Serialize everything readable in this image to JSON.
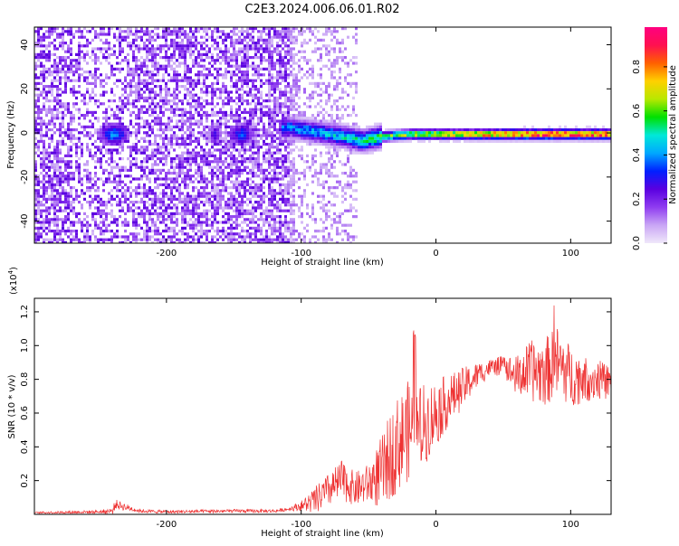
{
  "title": "C2E3.2024.006.06.01.R02",
  "colors": {
    "snr_line": "#ee3333",
    "axis": "#000000",
    "colormap": [
      "#f0e8fa",
      "#c9a6f5",
      "#8f3cf0",
      "#5a00e0",
      "#0020ff",
      "#00a8ff",
      "#00e8d8",
      "#00e000",
      "#b8e800",
      "#ffd000",
      "#ff6000",
      "#ff1050",
      "#ff0080"
    ]
  },
  "chart_data": [
    {
      "type": "heatmap",
      "xlabel": "Height of straight line (km)",
      "ylabel": "Frequency (Hz)",
      "xlim": [
        -298,
        130
      ],
      "ylim": [
        -50,
        48
      ],
      "xticks": [
        -200,
        -100,
        0,
        100
      ],
      "yticks": [
        -40,
        -20,
        0,
        20,
        40
      ],
      "grid": false,
      "colorbar": {
        "label": "Normalized spectral amplitude",
        "range": [
          0.0,
          0.98
        ],
        "ticks": [
          "0.0",
          "0.2",
          "0.4",
          "0.6",
          "0.8"
        ],
        "tick_values": [
          0.0,
          0.2,
          0.4,
          0.6,
          0.8
        ]
      },
      "ridge": {
        "description_values": "strong narrow signal centered near 0 Hz",
        "x": [
          -110,
          -90,
          -70,
          -55,
          -40,
          -20,
          0,
          20,
          40,
          60,
          80,
          100,
          130
        ],
        "center_hz": [
          3,
          1,
          -1,
          -3,
          -1,
          0,
          0,
          0,
          0,
          0,
          0,
          0,
          0
        ],
        "amplitude": [
          0.4,
          0.45,
          0.5,
          0.55,
          0.62,
          0.7,
          0.75,
          0.78,
          0.85,
          0.92,
          0.95,
          0.95,
          0.9
        ]
      }
    },
    {
      "type": "line",
      "xlabel": "Height of straight line (km)",
      "ylabel": "SNR (10 * v/v)",
      "multiplier_label": "(x10",
      "multiplier_exp": "4",
      "xlim": [
        -298,
        130
      ],
      "ylim": [
        0,
        1.28
      ],
      "xticks": [
        -200,
        -100,
        0,
        100
      ],
      "yticks": [
        0.2,
        0.4,
        0.6,
        0.8,
        1.0,
        1.2
      ],
      "ytick_labels": [
        "0.2",
        "0.4",
        "0.6",
        "0.8",
        "1.0",
        "1.2"
      ],
      "grid": false,
      "series": [
        {
          "x": [
            -298,
            -250,
            -240,
            -238,
            -220,
            -200,
            -150,
            -120,
            -110,
            -100,
            -90,
            -80,
            -70,
            -60,
            -50,
            -40,
            -30,
            -20,
            -10,
            0,
            10,
            20,
            30,
            40,
            50,
            60,
            70,
            80,
            90,
            100,
            110,
            120,
            130
          ],
          "y": [
            0.01,
            0.015,
            0.02,
            0.06,
            0.02,
            0.015,
            0.02,
            0.02,
            0.03,
            0.05,
            0.08,
            0.14,
            0.2,
            0.15,
            0.18,
            0.25,
            0.4,
            0.5,
            0.52,
            0.6,
            0.68,
            0.75,
            0.82,
            0.87,
            0.88,
            0.82,
            0.85,
            0.84,
            0.9,
            0.82,
            0.8,
            0.8,
            0.78
          ],
          "noise_envelope": [
            0.005,
            0.01,
            0.02,
            0.03,
            0.01,
            0.01,
            0.01,
            0.01,
            0.01,
            0.03,
            0.08,
            0.1,
            0.12,
            0.1,
            0.12,
            0.22,
            0.28,
            0.3,
            0.25,
            0.2,
            0.15,
            0.12,
            0.08,
            0.05,
            0.06,
            0.12,
            0.18,
            0.2,
            0.22,
            0.18,
            0.14,
            0.12,
            0.1
          ]
        }
      ]
    }
  ]
}
